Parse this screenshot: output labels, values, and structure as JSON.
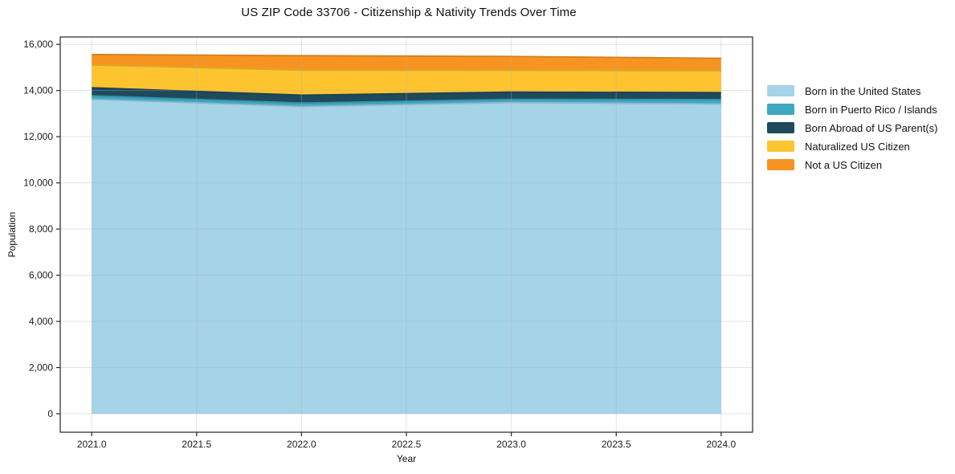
{
  "title": "US ZIP Code 33706 - Citizenship & Nativity Trends Over Time",
  "chart_data": {
    "type": "area",
    "stacked": true,
    "title": "US ZIP Code 33706 - Citizenship & Nativity Trends Over Time",
    "xlabel": "Year",
    "ylabel": "Population",
    "x": [
      2021,
      2022,
      2023,
      2024
    ],
    "series": [
      {
        "name": "Born in the United States",
        "color": "#a5d3e8",
        "values": [
          13620,
          13310,
          13480,
          13420
        ]
      },
      {
        "name": "Born in Puerto Rico / Islands",
        "color": "#3da8c2",
        "values": [
          155,
          150,
          140,
          190
        ]
      },
      {
        "name": "Born Abroad of US Parent(s)",
        "color": "#1f4a5c",
        "values": [
          345,
          340,
          310,
          300
        ]
      },
      {
        "name": "Naturalized US Citizen",
        "color": "#fdc42f",
        "values": [
          985,
          1080,
          945,
          945
        ]
      },
      {
        "name": "Not a US Citizen",
        "color": "#f79421",
        "values": [
          455,
          630,
          600,
          540
        ]
      }
    ],
    "totals": [
      15560,
      15510,
      15475,
      15395
    ],
    "xticks": [
      "2021.0",
      "2021.5",
      "2022.0",
      "2022.5",
      "2023.0",
      "2023.5",
      "2024.0"
    ],
    "xtick_values": [
      2021,
      2021.5,
      2022,
      2022.5,
      2023,
      2023.5,
      2024
    ],
    "yticks": [
      "0",
      "2,000",
      "4,000",
      "6,000",
      "8,000",
      "10,000",
      "12,000",
      "14,000",
      "16,000"
    ],
    "ytick_values": [
      0,
      2000,
      4000,
      6000,
      8000,
      10000,
      12000,
      14000,
      16000
    ],
    "xlim": [
      2020.85,
      2024.15
    ],
    "ylim": [
      -800,
      16320
    ],
    "grid": true,
    "grid_color": "#b0b0b0",
    "legend_position": "right"
  }
}
